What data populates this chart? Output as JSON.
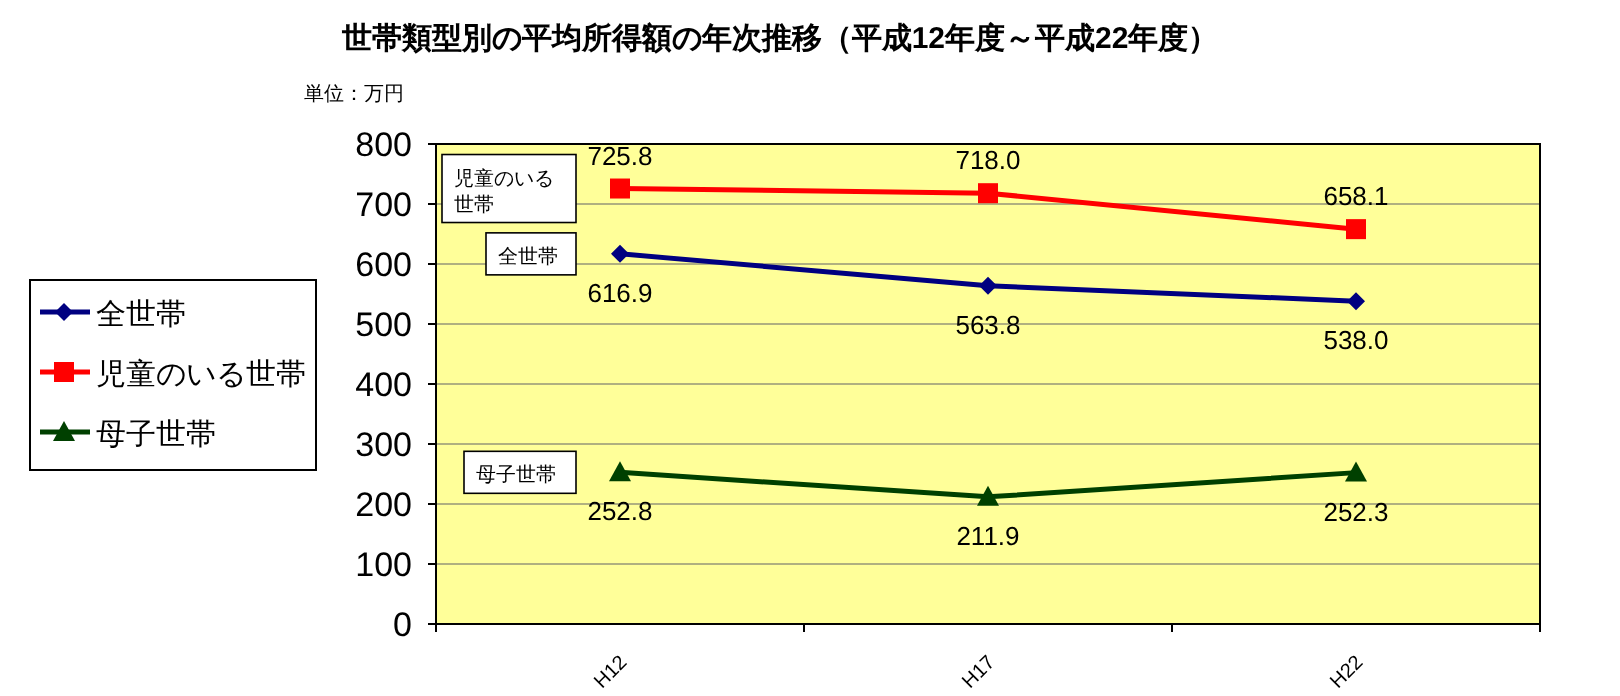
{
  "chart_data": {
    "type": "line",
    "title": "世帯類型別の平均所得額の年次推移（平成12年度～平成22年度）",
    "ylabel": "単位：万円",
    "categories": [
      "H12",
      "H17",
      "H22"
    ],
    "series": [
      {
        "name": "全世帯",
        "color": "#000080",
        "marker": "diamond",
        "values": [
          616.9,
          563.8,
          538.0
        ],
        "value_labels": [
          "616.9",
          "563.8",
          "538.0"
        ]
      },
      {
        "name": "児童のいる世帯",
        "color": "#ff0000",
        "marker": "square",
        "values": [
          725.8,
          718.0,
          658.1
        ],
        "value_labels": [
          "725.8",
          "718.0",
          "658.1"
        ]
      },
      {
        "name": "母子世帯",
        "color": "#004000",
        "marker": "triangle",
        "values": [
          252.8,
          211.9,
          252.3
        ],
        "value_labels": [
          "252.8",
          "211.9",
          "252.3"
        ]
      }
    ],
    "annotations": [
      "全世帯",
      "児童のいる世帯",
      "母子世帯"
    ],
    "ylim": [
      0,
      800
    ],
    "yticks": [
      0,
      100,
      200,
      300,
      400,
      500,
      600,
      700,
      800
    ],
    "grid": "y",
    "legend": "left"
  }
}
